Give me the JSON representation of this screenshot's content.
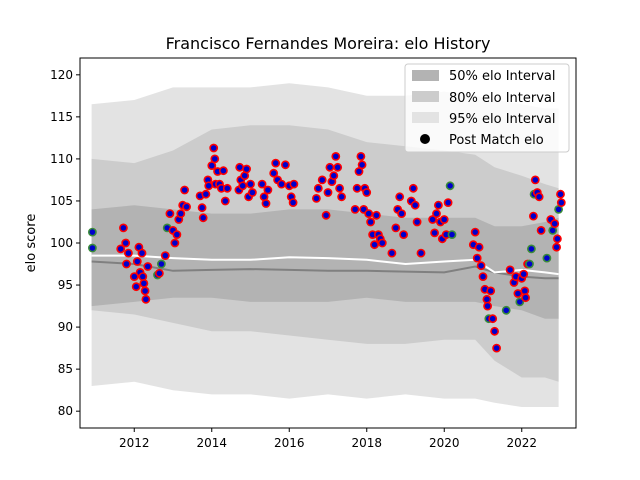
{
  "chart_data": {
    "type": "scatter",
    "title": "Francisco Fernandes Moreira: elo History",
    "xlabel": "",
    "ylabel": "elo score",
    "xlim": [
      2010.6,
      2023.4
    ],
    "ylim": [
      78,
      122
    ],
    "x_ticks": [
      2012,
      2014,
      2016,
      2018,
      2020,
      2022
    ],
    "y_ticks": [
      80,
      85,
      90,
      95,
      100,
      105,
      110,
      115,
      120
    ],
    "grid": false,
    "legend_position": "top-right",
    "colors": {
      "band50": "#b3b3b3",
      "band80": "#cccccc",
      "band95": "#e3e3e3",
      "median_line": "#808080",
      "mean_line": "#ffffff",
      "point_fill": "#0000cc",
      "point_edge_red": "#ff0000",
      "point_edge_green": "#3a8a3a"
    },
    "legend": [
      {
        "label": "50% elo Interval",
        "swatch": "band50"
      },
      {
        "label": "80% elo Interval",
        "swatch": "band80"
      },
      {
        "label": "95% elo Interval",
        "swatch": "band95"
      },
      {
        "label": "Post Match elo",
        "swatch": "marker"
      }
    ],
    "bands": {
      "x": [
        2010.9,
        2012.0,
        2013.0,
        2014.0,
        2015.0,
        2016.0,
        2017.0,
        2018.0,
        2019.0,
        2020.0,
        2020.8,
        2021.3,
        2022.0,
        2022.6,
        2022.95
      ],
      "p95_hi": [
        116.5,
        117.0,
        118.5,
        118.5,
        118.5,
        119.0,
        118.5,
        117.5,
        117.5,
        118.0,
        117.5,
        117.0,
        116.5,
        116.0,
        116.0
      ],
      "p80_hi": [
        110.0,
        109.5,
        111.0,
        113.5,
        114.0,
        114.0,
        113.5,
        112.0,
        111.5,
        111.0,
        110.5,
        109.0,
        108.0,
        107.0,
        106.5
      ],
      "p50_hi": [
        104.0,
        104.5,
        104.0,
        103.5,
        103.5,
        104.0,
        104.0,
        103.5,
        103.0,
        103.0,
        103.0,
        102.0,
        102.0,
        102.5,
        103.0
      ],
      "p50_lo": [
        92.5,
        93.0,
        93.5,
        93.5,
        93.0,
        93.0,
        93.0,
        93.5,
        93.0,
        93.0,
        93.0,
        92.5,
        92.0,
        91.0,
        91.0
      ],
      "p80_lo": [
        92.0,
        91.5,
        90.5,
        89.5,
        89.5,
        89.0,
        88.5,
        88.0,
        88.0,
        88.5,
        88.5,
        86.0,
        84.0,
        84.0,
        83.5
      ],
      "p95_lo": [
        83.0,
        83.5,
        82.5,
        82.0,
        82.0,
        81.5,
        82.0,
        81.5,
        82.0,
        81.5,
        81.5,
        81.0,
        80.5,
        80.5,
        80.5
      ],
      "median": [
        97.8,
        97.5,
        96.7,
        96.8,
        96.9,
        96.8,
        96.7,
        96.7,
        96.6,
        96.5,
        97.2,
        96.5,
        96.0,
        95.8,
        95.8
      ],
      "mean": [
        98.5,
        98.5,
        98.2,
        98.0,
        98.0,
        98.3,
        98.2,
        98.0,
        97.5,
        97.8,
        98.0,
        96.5,
        96.8,
        96.5,
        96.3
      ]
    },
    "series": [
      {
        "values_xy": [
          [
            2010.92,
            101.3,
            "g"
          ],
          [
            2010.92,
            99.4,
            "g"
          ],
          [
            2011.65,
            99.3,
            "r"
          ],
          [
            2011.72,
            101.8,
            "r"
          ],
          [
            2011.78,
            100.0,
            "r"
          ],
          [
            2011.8,
            97.5,
            "r"
          ],
          [
            2011.85,
            98.8,
            "r"
          ],
          [
            2012.0,
            96.0,
            "r"
          ],
          [
            2012.05,
            94.8,
            "r"
          ],
          [
            2012.08,
            97.8,
            "r"
          ],
          [
            2012.12,
            99.5,
            "r"
          ],
          [
            2012.15,
            96.5,
            "r"
          ],
          [
            2012.2,
            98.8,
            "r"
          ],
          [
            2012.22,
            96.0,
            "r"
          ],
          [
            2012.25,
            95.2,
            "r"
          ],
          [
            2012.28,
            94.3,
            "r"
          ],
          [
            2012.3,
            93.3,
            "r"
          ],
          [
            2012.35,
            97.2,
            "r"
          ],
          [
            2012.6,
            96.2,
            "g"
          ],
          [
            2012.65,
            96.4,
            "r"
          ],
          [
            2012.7,
            97.5,
            "g"
          ],
          [
            2012.8,
            98.5,
            "r"
          ],
          [
            2012.85,
            101.8,
            "g"
          ],
          [
            2012.92,
            103.5,
            "r"
          ],
          [
            2013.0,
            101.5,
            "r"
          ],
          [
            2013.05,
            100.0,
            "r"
          ],
          [
            2013.1,
            101.0,
            "r"
          ],
          [
            2013.15,
            102.8,
            "r"
          ],
          [
            2013.2,
            103.5,
            "r"
          ],
          [
            2013.25,
            104.5,
            "r"
          ],
          [
            2013.3,
            106.3,
            "r"
          ],
          [
            2013.35,
            104.3,
            "r"
          ],
          [
            2013.7,
            105.6,
            "r"
          ],
          [
            2013.75,
            104.2,
            "r"
          ],
          [
            2013.78,
            103.0,
            "r"
          ],
          [
            2013.85,
            105.8,
            "r"
          ],
          [
            2013.9,
            107.5,
            "r"
          ],
          [
            2013.92,
            106.8,
            "r"
          ],
          [
            2014.0,
            109.2,
            "r"
          ],
          [
            2014.05,
            111.3,
            "r"
          ],
          [
            2014.08,
            110.0,
            "r"
          ],
          [
            2014.1,
            107.0,
            "r"
          ],
          [
            2014.15,
            108.5,
            "r"
          ],
          [
            2014.2,
            107.0,
            "r"
          ],
          [
            2014.25,
            106.5,
            "r"
          ],
          [
            2014.3,
            108.6,
            "r"
          ],
          [
            2014.35,
            105.0,
            "r"
          ],
          [
            2014.4,
            106.5,
            "r"
          ],
          [
            2014.7,
            106.3,
            "r"
          ],
          [
            2014.72,
            109.0,
            "r"
          ],
          [
            2014.75,
            107.5,
            "r"
          ],
          [
            2014.8,
            106.8,
            "r"
          ],
          [
            2014.85,
            108.0,
            "r"
          ],
          [
            2014.9,
            108.8,
            "r"
          ],
          [
            2014.95,
            105.5,
            "r"
          ],
          [
            2015.0,
            107.0,
            "r"
          ],
          [
            2015.05,
            106.0,
            "r"
          ],
          [
            2015.3,
            107.0,
            "r"
          ],
          [
            2015.35,
            105.5,
            "r"
          ],
          [
            2015.4,
            104.7,
            "r"
          ],
          [
            2015.45,
            106.3,
            "r"
          ],
          [
            2015.6,
            108.3,
            "r"
          ],
          [
            2015.65,
            109.5,
            "r"
          ],
          [
            2015.7,
            107.5,
            "r"
          ],
          [
            2015.8,
            107.0,
            "r"
          ],
          [
            2015.9,
            109.3,
            "r"
          ],
          [
            2016.0,
            106.8,
            "r"
          ],
          [
            2016.05,
            105.5,
            "r"
          ],
          [
            2016.1,
            104.8,
            "r"
          ],
          [
            2016.12,
            107.0,
            "r"
          ],
          [
            2016.7,
            105.3,
            "r"
          ],
          [
            2016.75,
            106.5,
            "r"
          ],
          [
            2016.85,
            107.5,
            "r"
          ],
          [
            2016.95,
            103.3,
            "r"
          ],
          [
            2017.0,
            106.0,
            "r"
          ],
          [
            2017.05,
            109.0,
            "r"
          ],
          [
            2017.1,
            107.3,
            "r"
          ],
          [
            2017.15,
            108.0,
            "r"
          ],
          [
            2017.2,
            110.3,
            "r"
          ],
          [
            2017.25,
            109.0,
            "r"
          ],
          [
            2017.3,
            106.5,
            "r"
          ],
          [
            2017.35,
            105.5,
            "r"
          ],
          [
            2017.7,
            104.0,
            "r"
          ],
          [
            2017.75,
            106.5,
            "r"
          ],
          [
            2017.8,
            108.5,
            "r"
          ],
          [
            2017.85,
            110.3,
            "r"
          ],
          [
            2017.88,
            109.3,
            "r"
          ],
          [
            2017.92,
            104.0,
            "r"
          ],
          [
            2017.95,
            106.5,
            "r"
          ],
          [
            2018.0,
            106.0,
            "r"
          ],
          [
            2018.05,
            103.5,
            "r"
          ],
          [
            2018.1,
            102.5,
            "r"
          ],
          [
            2018.15,
            101.0,
            "r"
          ],
          [
            2018.2,
            99.8,
            "r"
          ],
          [
            2018.25,
            103.3,
            "r"
          ],
          [
            2018.3,
            101.0,
            "r"
          ],
          [
            2018.35,
            100.5,
            "r"
          ],
          [
            2018.4,
            100.0,
            "r"
          ],
          [
            2018.65,
            98.8,
            "r"
          ],
          [
            2018.75,
            101.8,
            "r"
          ],
          [
            2018.8,
            104.0,
            "r"
          ],
          [
            2018.85,
            105.5,
            "r"
          ],
          [
            2018.9,
            103.5,
            "r"
          ],
          [
            2018.95,
            101.0,
            "r"
          ],
          [
            2019.15,
            105.0,
            "r"
          ],
          [
            2019.2,
            106.5,
            "r"
          ],
          [
            2019.25,
            104.5,
            "r"
          ],
          [
            2019.3,
            102.5,
            "r"
          ],
          [
            2019.4,
            98.8,
            "r"
          ],
          [
            2019.7,
            102.8,
            "r"
          ],
          [
            2019.75,
            101.2,
            "r"
          ],
          [
            2019.8,
            103.5,
            "r"
          ],
          [
            2019.85,
            104.5,
            "r"
          ],
          [
            2019.9,
            102.5,
            "r"
          ],
          [
            2019.95,
            100.5,
            "r"
          ],
          [
            2020.0,
            102.8,
            "r"
          ],
          [
            2020.05,
            101.0,
            "r"
          ],
          [
            2020.1,
            104.8,
            "r"
          ],
          [
            2020.15,
            106.8,
            "g"
          ],
          [
            2020.2,
            101.0,
            "g"
          ],
          [
            2020.75,
            99.8,
            "r"
          ],
          [
            2020.8,
            101.3,
            "r"
          ],
          [
            2020.85,
            98.2,
            "r"
          ],
          [
            2020.9,
            99.5,
            "r"
          ],
          [
            2020.95,
            97.3,
            "r"
          ],
          [
            2021.0,
            96.0,
            "r"
          ],
          [
            2021.05,
            94.5,
            "r"
          ],
          [
            2021.1,
            93.3,
            "r"
          ],
          [
            2021.12,
            92.5,
            "r"
          ],
          [
            2021.15,
            91.0,
            "g"
          ],
          [
            2021.2,
            94.3,
            "r"
          ],
          [
            2021.25,
            91.0,
            "r"
          ],
          [
            2021.3,
            89.5,
            "r"
          ],
          [
            2021.35,
            87.5,
            "r"
          ],
          [
            2021.6,
            92.0,
            "g"
          ],
          [
            2021.7,
            96.8,
            "r"
          ],
          [
            2021.8,
            95.3,
            "r"
          ],
          [
            2021.85,
            96.0,
            "r"
          ],
          [
            2021.9,
            94.0,
            "r"
          ],
          [
            2021.95,
            93.0,
            "g"
          ],
          [
            2022.0,
            95.8,
            "r"
          ],
          [
            2022.05,
            96.3,
            "r"
          ],
          [
            2022.08,
            94.3,
            "r"
          ],
          [
            2022.1,
            93.5,
            "r"
          ],
          [
            2022.15,
            97.5,
            "r"
          ],
          [
            2022.2,
            97.5,
            "g"
          ],
          [
            2022.25,
            99.3,
            "g"
          ],
          [
            2022.3,
            103.2,
            "r"
          ],
          [
            2022.32,
            105.8,
            "g"
          ],
          [
            2022.35,
            107.5,
            "r"
          ],
          [
            2022.4,
            106.0,
            "r"
          ],
          [
            2022.45,
            105.5,
            "r"
          ],
          [
            2022.5,
            101.5,
            "r"
          ],
          [
            2022.65,
            98.2,
            "g"
          ],
          [
            2022.75,
            102.8,
            "r"
          ],
          [
            2022.8,
            101.5,
            "g"
          ],
          [
            2022.85,
            102.3,
            "r"
          ],
          [
            2022.9,
            99.5,
            "r"
          ],
          [
            2022.92,
            100.5,
            "r"
          ],
          [
            2022.95,
            104.0,
            "g"
          ],
          [
            2023.0,
            105.8,
            "r"
          ],
          [
            2023.02,
            104.8,
            "r"
          ]
        ]
      }
    ]
  }
}
